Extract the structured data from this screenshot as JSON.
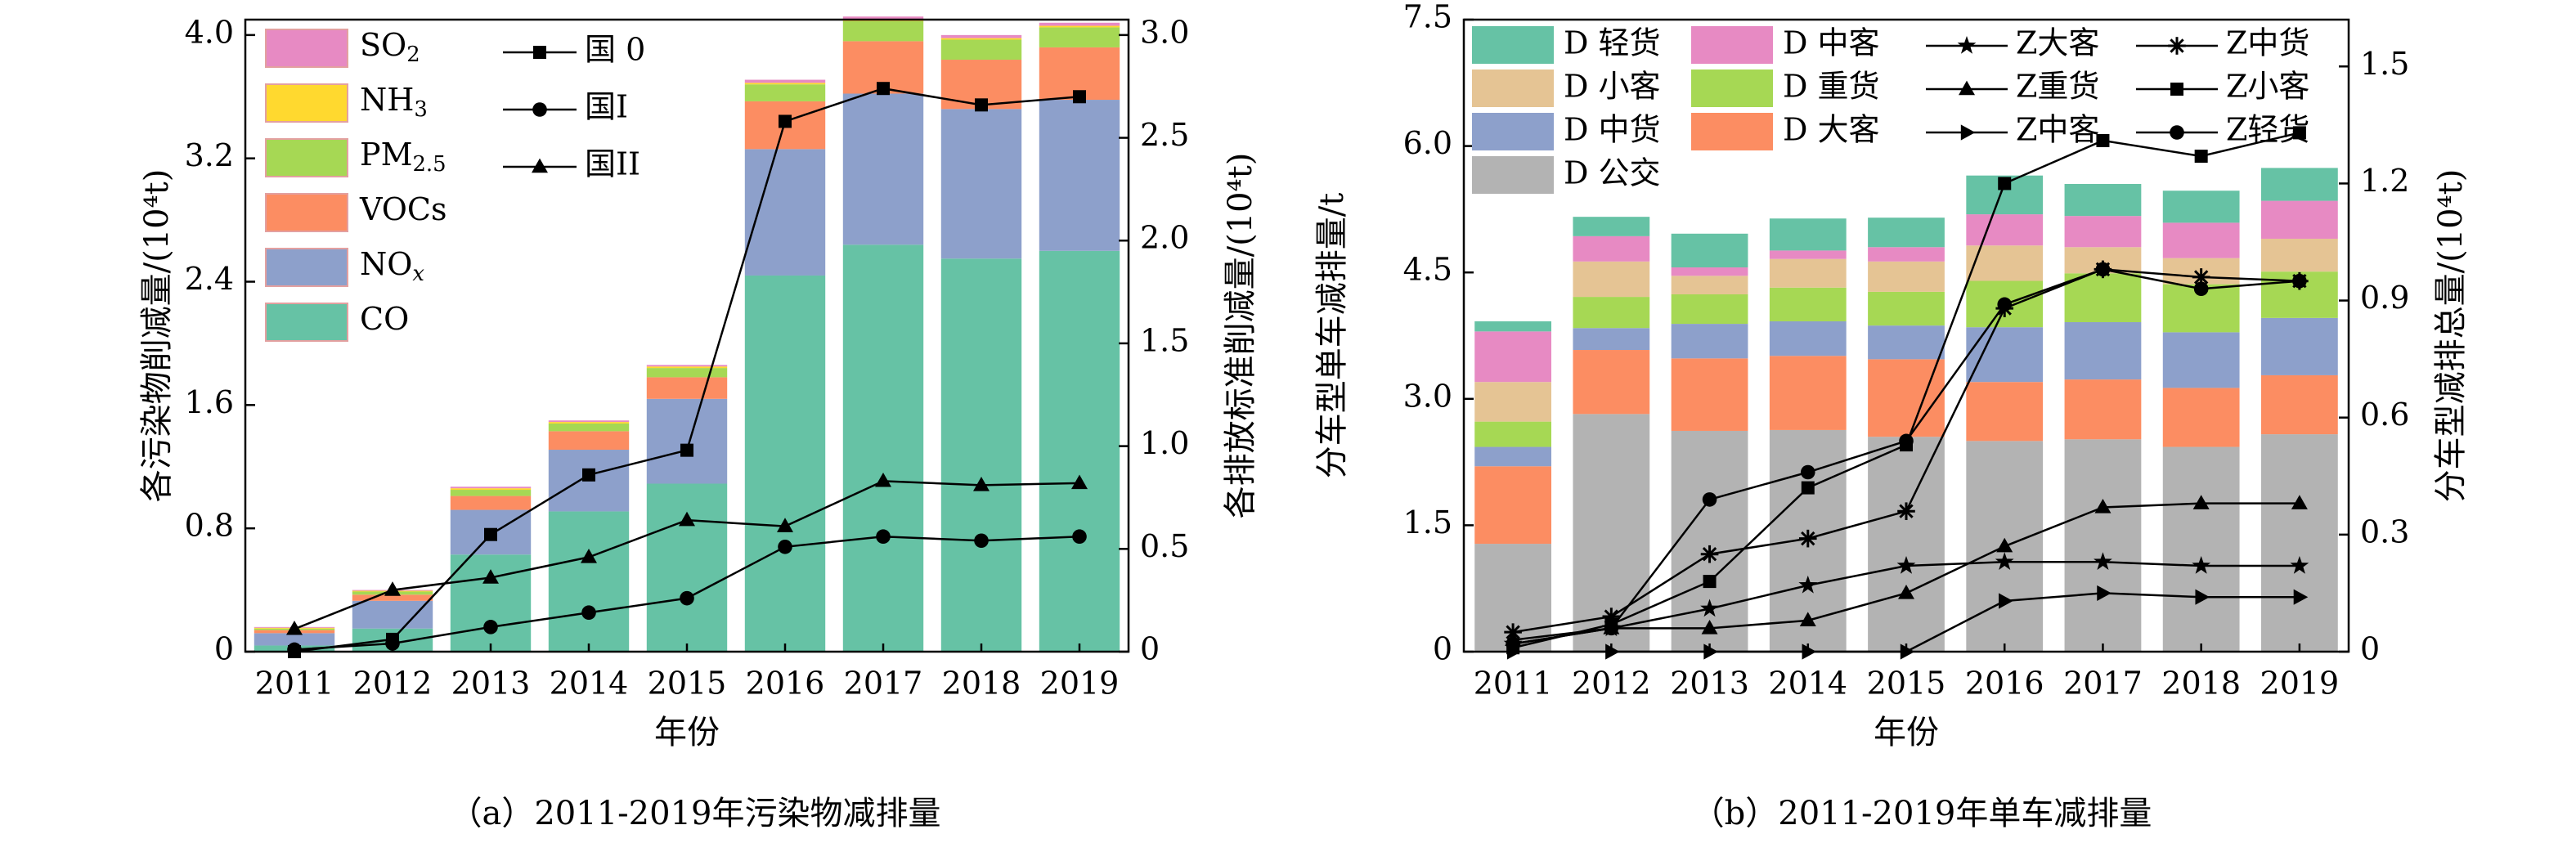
{
  "captions": {
    "a": "（a）2011-2019年污染物减排量",
    "b": "（b）2011-2019年单车减排量"
  },
  "chart_data": [
    {
      "type": "bar",
      "stacked": true,
      "title": "",
      "categories": [
        "2011",
        "2012",
        "2013",
        "2014",
        "2015",
        "2016",
        "2017",
        "2018",
        "2019"
      ],
      "xlabel": "年份",
      "ylabel": "各污染物削减量/(10⁴t)",
      "y2label": "各排放标准削减量/(10⁴t)",
      "ylim": [
        0,
        4.1
      ],
      "y2lim": [
        0,
        3.075
      ],
      "yticks": [
        "0",
        "0.8",
        "1.6",
        "2.4",
        "3.2",
        "4.0"
      ],
      "yticks_values": [
        0,
        0.8,
        1.6,
        2.4,
        3.2,
        4.0
      ],
      "y2ticks": [
        "0",
        "0.5",
        "1.0",
        "1.5",
        "2.0",
        "2.5",
        "3.0"
      ],
      "y2ticks_values": [
        0,
        0.5,
        1.0,
        1.5,
        2.0,
        2.5,
        3.0
      ],
      "legend_position": "top-left",
      "series": [
        {
          "name": "CO",
          "color": "#66C2A5",
          "values": [
            0.04,
            0.15,
            0.63,
            0.91,
            1.09,
            2.44,
            2.64,
            2.55,
            2.6
          ]
        },
        {
          "name": "NO_x",
          "color": "#8DA0CB",
          "values": [
            0.08,
            0.18,
            0.29,
            0.4,
            0.55,
            0.82,
            0.98,
            0.97,
            0.98
          ]
        },
        {
          "name": "VOCs",
          "color": "#FC8D62",
          "values": [
            0.02,
            0.04,
            0.09,
            0.12,
            0.14,
            0.31,
            0.34,
            0.32,
            0.34
          ]
        },
        {
          "name": "PM_2.5",
          "color": "#A6D854",
          "values": [
            0.01,
            0.02,
            0.04,
            0.05,
            0.06,
            0.11,
            0.13,
            0.13,
            0.13
          ]
        },
        {
          "name": "NH_3",
          "color": "#FFD92F",
          "values": [
            0.005,
            0.005,
            0.01,
            0.01,
            0.01,
            0.01,
            0.01,
            0.01,
            0.01
          ]
        },
        {
          "name": "SO_2",
          "color": "#E78AC3",
          "values": [
            0.005,
            0.005,
            0.01,
            0.01,
            0.01,
            0.02,
            0.02,
            0.02,
            0.02
          ]
        }
      ],
      "lines": [
        {
          "name": "国 0",
          "marker": "square",
          "axis": "y2",
          "values": [
            0.0,
            0.06,
            0.57,
            0.86,
            0.98,
            2.58,
            2.74,
            2.66,
            2.7
          ]
        },
        {
          "name": "国I",
          "marker": "circle",
          "axis": "y2",
          "values": [
            0.01,
            0.04,
            0.12,
            0.19,
            0.26,
            0.51,
            0.56,
            0.54,
            0.56
          ]
        },
        {
          "name": "国II",
          "marker": "triangle",
          "axis": "y2",
          "values": [
            0.11,
            0.3,
            0.36,
            0.46,
            0.64,
            0.61,
            0.83,
            0.81,
            0.82
          ]
        }
      ]
    },
    {
      "type": "bar",
      "stacked": true,
      "title": "",
      "categories": [
        "2011",
        "2012",
        "2013",
        "2014",
        "2015",
        "2016",
        "2017",
        "2018",
        "2019"
      ],
      "xlabel": "年份",
      "ylabel": "分车型单车减排量/t",
      "y2label": "分车型减排总量/(10⁴t)",
      "ylim": [
        0,
        7.5
      ],
      "y2lim": [
        0,
        1.62
      ],
      "yticks": [
        "0",
        "1.5",
        "3.0",
        "4.5",
        "6.0",
        "7.5"
      ],
      "yticks_values": [
        0,
        1.5,
        3.0,
        4.5,
        6.0,
        7.5
      ],
      "y2ticks": [
        "0",
        "0.3",
        "0.6",
        "0.9",
        "1.2",
        "1.5"
      ],
      "y2ticks_values": [
        0,
        0.3,
        0.6,
        0.9,
        1.2,
        1.5
      ],
      "legend_position": "top",
      "series": [
        {
          "name": "D 公交",
          "color": "#B3B3B3",
          "values": [
            1.28,
            2.82,
            2.62,
            2.63,
            2.55,
            2.5,
            2.52,
            2.43,
            2.58
          ]
        },
        {
          "name": "D 大客",
          "color": "#FC8D62",
          "values": [
            0.92,
            0.76,
            0.86,
            0.88,
            0.92,
            0.7,
            0.71,
            0.7,
            0.7
          ]
        },
        {
          "name": "D 中货",
          "color": "#8DA0CB",
          "values": [
            0.23,
            0.26,
            0.41,
            0.41,
            0.4,
            0.65,
            0.68,
            0.66,
            0.68
          ]
        },
        {
          "name": "D 重货",
          "color": "#A6D854",
          "values": [
            0.3,
            0.37,
            0.35,
            0.4,
            0.4,
            0.55,
            0.58,
            0.57,
            0.55
          ]
        },
        {
          "name": "D 小客",
          "color": "#E5C494",
          "values": [
            0.47,
            0.42,
            0.22,
            0.34,
            0.36,
            0.42,
            0.31,
            0.31,
            0.39
          ]
        },
        {
          "name": "D 中客",
          "color": "#E78AC3",
          "values": [
            0.6,
            0.3,
            0.1,
            0.1,
            0.17,
            0.37,
            0.37,
            0.42,
            0.45
          ]
        },
        {
          "name": "D 轻货",
          "color": "#66C2A5",
          "values": [
            0.12,
            0.23,
            0.4,
            0.38,
            0.35,
            0.46,
            0.38,
            0.38,
            0.39
          ]
        }
      ],
      "lines": [
        {
          "name": "Z大客",
          "marker": "star",
          "axis": "y2",
          "values": [
            0.02,
            0.06,
            0.11,
            0.17,
            0.22,
            0.23,
            0.23,
            0.22,
            0.22
          ]
        },
        {
          "name": "Z重货",
          "marker": "triangle",
          "axis": "y2",
          "values": [
            0.03,
            0.06,
            0.06,
            0.08,
            0.15,
            0.27,
            0.37,
            0.38,
            0.38
          ]
        },
        {
          "name": "Z中客",
          "marker": "triangle-right",
          "axis": "y2",
          "values": [
            0.0,
            0.0,
            0.0,
            0.0,
            0.0,
            0.13,
            0.15,
            0.14,
            0.14
          ]
        },
        {
          "name": "Z中货",
          "marker": "asterisk",
          "axis": "y2",
          "values": [
            0.05,
            0.09,
            0.25,
            0.29,
            0.36,
            0.88,
            0.98,
            0.96,
            0.95
          ]
        },
        {
          "name": "Z小客",
          "marker": "square",
          "axis": "y2",
          "values": [
            0.01,
            0.07,
            0.18,
            0.42,
            0.53,
            1.2,
            1.31,
            1.27,
            1.33
          ]
        },
        {
          "name": "Z轻货",
          "marker": "circle",
          "axis": "y2",
          "values": [
            0.02,
            0.06,
            0.39,
            0.46,
            0.54,
            0.89,
            0.98,
            0.93,
            0.95
          ]
        }
      ]
    }
  ]
}
